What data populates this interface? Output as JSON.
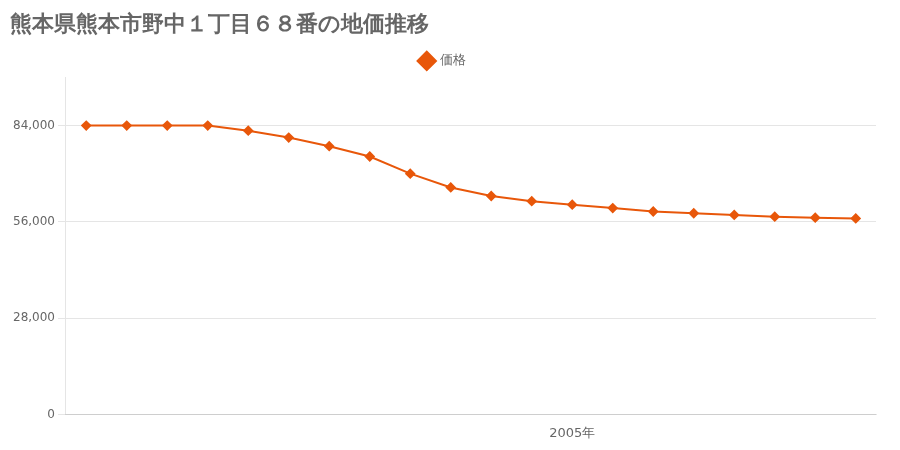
{
  "chart_data": {
    "type": "line",
    "title": "熊本県熊本市野中１丁目６８番の地価推移",
    "x": [
      1993,
      1994,
      1995,
      1996,
      1997,
      1998,
      1999,
      2000,
      2001,
      2002,
      2003,
      2004,
      2005,
      2006,
      2007,
      2008,
      2009,
      2010,
      2011,
      2012
    ],
    "series": [
      {
        "name": "価格",
        "color": "#e8570a",
        "marker": "diamond",
        "values": [
          84000,
          84000,
          84000,
          84000,
          82500,
          80500,
          78000,
          75000,
          70000,
          66000,
          63500,
          62000,
          61000,
          60000,
          59000,
          58500,
          58000,
          57500,
          57200,
          57000
        ]
      }
    ],
    "xlim": [
      1992.5,
      2012.5
    ],
    "xticks": [
      {
        "value": 2005,
        "label": "2005年"
      }
    ],
    "ylim": [
      0,
      98000
    ],
    "yticks": [
      0,
      {
        "value": 28000,
        "label": "28,000"
      },
      {
        "value": 56000,
        "label": "56,000"
      },
      {
        "value": 84000,
        "label": "84,000"
      }
    ],
    "grid": "y",
    "legend": "top"
  }
}
